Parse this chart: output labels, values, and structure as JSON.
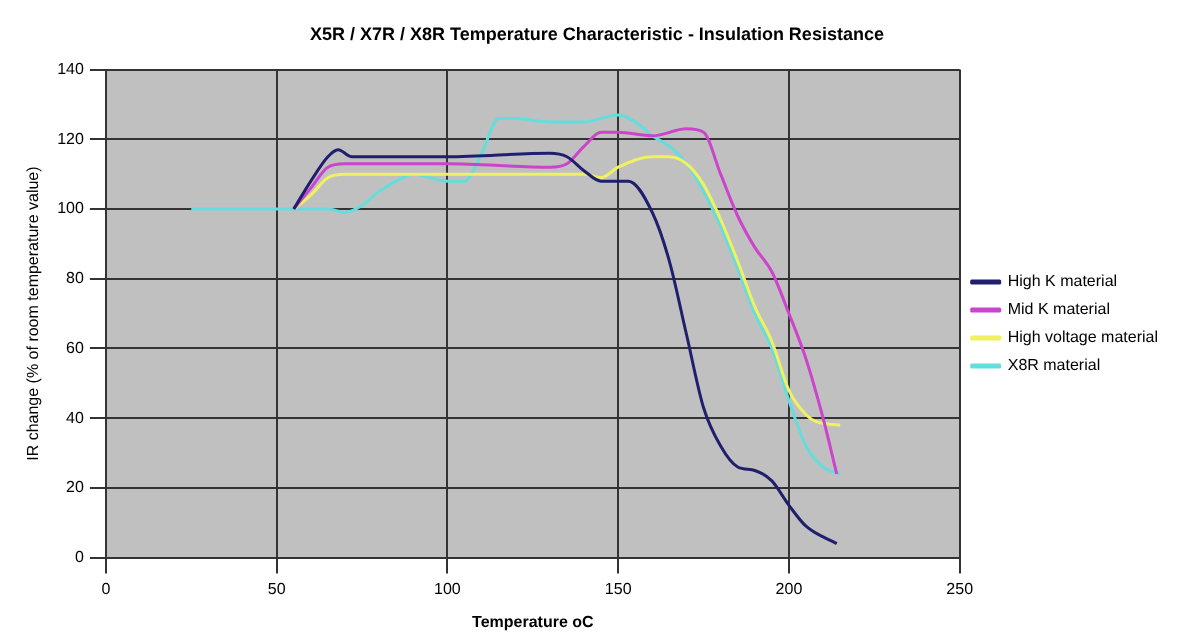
{
  "chart_data": {
    "type": "line",
    "title": "X5R / X7R / X8R Temperature Characteristic - Insulation Resistance",
    "xlabel": "Temperature oC",
    "ylabel": "IR change (% of room temperature value)",
    "xlim": [
      0,
      250
    ],
    "xticks": [
      0,
      50,
      100,
      150,
      200,
      250
    ],
    "ylim": [
      0,
      140
    ],
    "yticks": [
      0,
      20,
      40,
      60,
      80,
      100,
      120,
      140
    ],
    "grid": true,
    "legend": "right",
    "marker": "none",
    "line_style": "solid",
    "series": [
      {
        "name": "High K material",
        "color": "#1f1f6e",
        "x": [
          55,
          60,
          65,
          68,
          72,
          100,
          130,
          135,
          140,
          145,
          150,
          153,
          160,
          165,
          170,
          175,
          180,
          185,
          190,
          195,
          200,
          205,
          214
        ],
        "values": [
          100,
          108,
          115,
          117,
          115,
          115,
          116,
          115,
          111,
          108,
          108,
          108,
          99,
          85,
          64,
          43,
          32,
          26,
          25,
          22,
          15,
          9,
          4
        ]
      },
      {
        "name": "Mid K material",
        "color": "#cc44cc",
        "x": [
          55,
          60,
          65,
          70,
          100,
          130,
          135,
          140,
          145,
          150,
          160,
          170,
          175,
          180,
          185,
          190,
          195,
          200,
          205,
          210,
          214
        ],
        "values": [
          100,
          106,
          112,
          113,
          113,
          112,
          113,
          118,
          122,
          122,
          121,
          123,
          122,
          110,
          98,
          89,
          82,
          70,
          57,
          40,
          24
        ]
      },
      {
        "name": "High voltage material",
        "color": "#f0f060",
        "x": [
          55,
          60,
          65,
          70,
          100,
          140,
          145,
          150,
          160,
          165,
          170,
          175,
          180,
          185,
          190,
          195,
          200,
          205,
          208,
          215
        ],
        "values": [
          100,
          104,
          109,
          110,
          110,
          110,
          109,
          112,
          115,
          115,
          113,
          107,
          97,
          85,
          72,
          62,
          48,
          41,
          39,
          38
        ]
      },
      {
        "name": "X8R material",
        "color": "#66dddd",
        "x": [
          25,
          50,
          55,
          60,
          65,
          70,
          75,
          80,
          85,
          90,
          100,
          105,
          110,
          115,
          120,
          130,
          140,
          150,
          155,
          160,
          165,
          170,
          175,
          180,
          185,
          190,
          195,
          200,
          205,
          210,
          215
        ],
        "values": [
          100,
          100,
          100,
          100,
          100,
          99,
          101,
          105,
          108,
          110,
          108,
          108,
          116,
          126,
          126,
          125,
          125,
          127,
          125,
          121,
          118,
          113,
          105,
          95,
          83,
          70,
          60,
          45,
          32,
          26,
          24
        ]
      }
    ]
  }
}
